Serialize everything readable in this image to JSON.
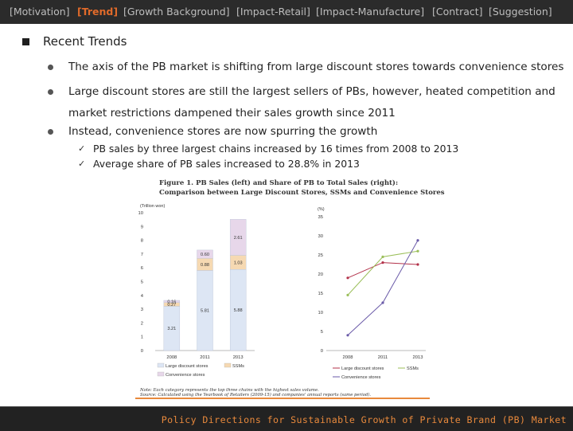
{
  "nav": {
    "items": [
      "[Motivation]",
      "[Trend]",
      "[Growth Background]",
      "[Impact-Retail]",
      "[Impact-Manufacture]",
      "[Contract]",
      "[Suggestion]"
    ],
    "active_index": 1
  },
  "content": {
    "heading": "Recent Trends",
    "bullets": [
      "The axis of the PB market is shifting from large discount stores towards convenience stores",
      "Large discount stores are still the largest sellers of PBs, however, heated competition and",
      "market restrictions dampened their sales growth since 2011",
      "Instead, convenience stores are now spurring the growth"
    ],
    "subpoints": [
      "PB sales by three largest chains increased by 16 times from 2008 to 2013",
      "Average share of PB sales increased to 28.8% in 2013"
    ]
  },
  "figure": {
    "caption_line1": "Figure 1. PB Sales (left) and Share of PB to Total Sales (right):",
    "caption_line2": "Comparison between Large Discount Stores, SSMs and Convenience Stores",
    "note_line1": "Note: Each category represents the top three chains with the highest sales volume.",
    "note_line2": "Source: Calculated using the Yearbook of Retailers (2009-15) and companies' annual reports (same period)."
  },
  "chart_data": [
    {
      "type": "bar",
      "stacked": true,
      "ylabel": "(Trillion won)",
      "ylim": [
        0,
        10
      ],
      "yticks": [
        "0",
        "1",
        "2",
        "3",
        "4",
        "5",
        "6",
        "7",
        "8",
        "9",
        "10"
      ],
      "categories": [
        "2008",
        "2011",
        "2013"
      ],
      "series": [
        {
          "name": "Large discount stores",
          "values": [
            3.21,
            5.81,
            5.88
          ],
          "color": "#dde6f4"
        },
        {
          "name": "SSMs",
          "values": [
            0.27,
            0.88,
            1.03
          ],
          "color": "#f6d9b2"
        },
        {
          "name": "Convenience stores",
          "values": [
            0.16,
            0.6,
            2.61
          ],
          "color": "#e7d7ea"
        }
      ],
      "labels": [
        [
          "3.21",
          "0.27",
          "0.16"
        ],
        [
          "5.81",
          "0.88",
          "0.60"
        ],
        [
          "5.88",
          "1.03",
          "2.61"
        ]
      ]
    },
    {
      "type": "line",
      "ylabel": "(%)",
      "ylim": [
        0,
        35
      ],
      "yticks": [
        "0",
        "5",
        "10",
        "15",
        "20",
        "25",
        "30",
        "35"
      ],
      "x": [
        "2008",
        "2011",
        "2013"
      ],
      "series": [
        {
          "name": "Large discount stores",
          "values": [
            19,
            23,
            22.5
          ],
          "color": "#b3324a"
        },
        {
          "name": "SSMs",
          "values": [
            14.5,
            24.5,
            26
          ],
          "color": "#9bbf5a"
        },
        {
          "name": "Convenience stores",
          "values": [
            4,
            12.5,
            28.8
          ],
          "color": "#6a5aa8"
        }
      ]
    }
  ],
  "footer": {
    "text": "Policy Directions for Sustainable Growth of Private Brand (PB) Market"
  }
}
